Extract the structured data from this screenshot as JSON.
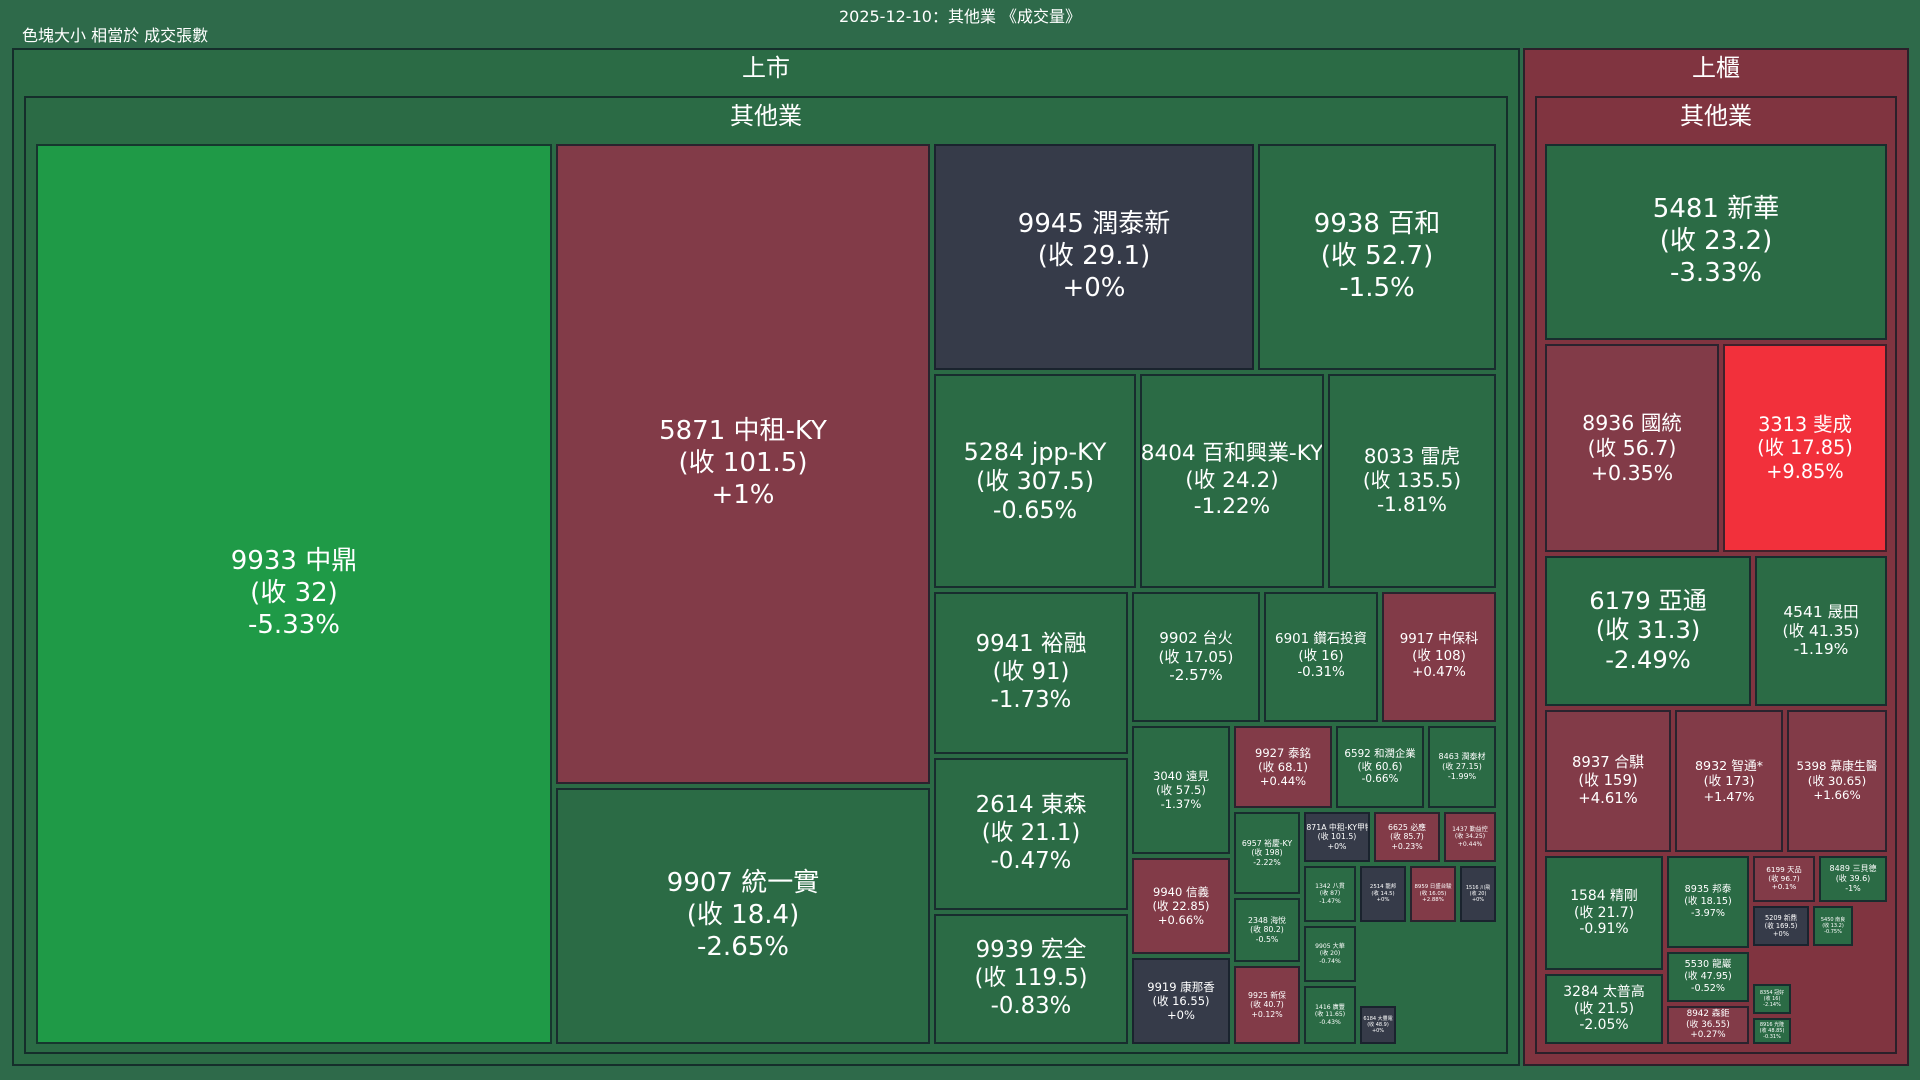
{
  "header": {
    "title": "2025-12-10：其他業 《成交量》",
    "note": "色塊大小 相當於 成交張數"
  },
  "colors": {
    "background": "#2e6a4a",
    "strong_down": "#1f9a47",
    "down": "#2b6b45",
    "flat": "#363b49",
    "up": "#823b48",
    "limit_up": "#f2303b",
    "market_otc": "#803440"
  },
  "chart_data": {
    "type": "treemap",
    "title": "2025-12-10：其他業 《成交量》",
    "size_metric": "色塊大小 相當於 成交張數",
    "groups": [
      {
        "market": "上市",
        "industry": "其他業",
        "items": [
          {
            "code": "9933",
            "name": "中鼎",
            "close": "32",
            "change": "-5.33%",
            "pct": -5.33
          },
          {
            "code": "5871",
            "name": "中租-KY",
            "close": "101.5",
            "change": "+1%",
            "pct": 1
          },
          {
            "code": "9907",
            "name": "統一實",
            "close": "18.4",
            "change": "-2.65%",
            "pct": -2.65
          },
          {
            "code": "9945",
            "name": "潤泰新",
            "close": "29.1",
            "change": "+0%",
            "pct": 0
          },
          {
            "code": "9938",
            "name": "百和",
            "close": "52.7",
            "change": "-1.5%",
            "pct": -1.5
          },
          {
            "code": "5284",
            "name": "jpp-KY",
            "close": "307.5",
            "change": "-0.65%",
            "pct": -0.65
          },
          {
            "code": "8404",
            "name": "百和興業-KY",
            "close": "24.2",
            "change": "-1.22%",
            "pct": -1.22
          },
          {
            "code": "8033",
            "name": "雷虎",
            "close": "135.5",
            "change": "-1.81%",
            "pct": -1.81
          },
          {
            "code": "9941",
            "name": "裕融",
            "close": "91",
            "change": "-1.73%",
            "pct": -1.73
          },
          {
            "code": "9902",
            "name": "台火",
            "close": "17.05",
            "change": "-2.57%",
            "pct": -2.57
          },
          {
            "code": "6901",
            "name": "鑽石投資",
            "close": "16",
            "change": "-0.31%",
            "pct": -0.31
          },
          {
            "code": "9917",
            "name": "中保科",
            "close": "108",
            "change": "+0.47%",
            "pct": 0.47
          },
          {
            "code": "2614",
            "name": "東森",
            "close": "21.1",
            "change": "-0.47%",
            "pct": -0.47
          },
          {
            "code": "3040",
            "name": "遠見",
            "close": "57.5",
            "change": "-1.37%",
            "pct": -1.37
          },
          {
            "code": "9927",
            "name": "泰銘",
            "close": "68.1",
            "change": "+0.44%",
            "pct": 0.44
          },
          {
            "code": "6592",
            "name": "和潤企業",
            "close": "60.6",
            "change": "-0.66%",
            "pct": -0.66
          },
          {
            "code": "8463",
            "name": "潤泰材",
            "close": "27.15",
            "change": "-1.99%",
            "pct": -1.99
          },
          {
            "code": "6957",
            "name": "裕慶-KY",
            "close": "198",
            "change": "-2.22%",
            "pct": -2.22
          },
          {
            "code": "5871A",
            "name": "中租-KY甲特",
            "close": "101.5",
            "change": "+0%",
            "pct": 0
          },
          {
            "code": "6625",
            "name": "必應",
            "close": "85.7",
            "change": "+0.23%",
            "pct": 0.23
          },
          {
            "code": "1437",
            "name": "勤益控",
            "close": "34.25",
            "change": "+0.44%",
            "pct": 0.44
          },
          {
            "code": "9940",
            "name": "信義",
            "close": "22.85",
            "change": "+0.66%",
            "pct": 0.66
          },
          {
            "code": "1342",
            "name": "八貫",
            "close": "87",
            "change": "-1.47%",
            "pct": -1.47
          },
          {
            "code": "2514",
            "name": "龍邦",
            "close": "14.5",
            "change": "+0%",
            "pct": 0
          },
          {
            "code": "8959",
            "name": "日盛台駿",
            "close": "16.05",
            "change": "+2.88%",
            "pct": 2.88
          },
          {
            "code": "1516",
            "name": "川飛",
            "close": "20",
            "change": "+0%",
            "pct": 0
          },
          {
            "code": "9939",
            "name": "宏全",
            "close": "119.5",
            "change": "-0.83%",
            "pct": -0.83
          },
          {
            "code": "2348",
            "name": "海悅",
            "close": "80.2",
            "change": "-0.5%",
            "pct": -0.5
          },
          {
            "code": "9905",
            "name": "大華",
            "close": "20",
            "change": "-0.74%",
            "pct": -0.74
          },
          {
            "code": "9919",
            "name": "康那香",
            "close": "16.55",
            "change": "+0%",
            "pct": 0
          },
          {
            "code": "9925",
            "name": "新保",
            "close": "40.7",
            "change": "+0.12%",
            "pct": 0.12
          },
          {
            "code": "1416",
            "name": "廣豐",
            "close": "11.65",
            "change": "-0.43%",
            "pct": -0.43
          },
          {
            "code": "6184",
            "name": "大豐電",
            "close": "48.9",
            "change": "+0%",
            "pct": 0
          }
        ]
      },
      {
        "market": "上櫃",
        "industry": "其他業",
        "items": [
          {
            "code": "5481",
            "name": "新華",
            "close": "23.2",
            "change": "-3.33%",
            "pct": -3.33
          },
          {
            "code": "8936",
            "name": "國統",
            "close": "56.7",
            "change": "+0.35%",
            "pct": 0.35
          },
          {
            "code": "3313",
            "name": "斐成",
            "close": "17.85",
            "change": "+9.85%",
            "pct": 9.85
          },
          {
            "code": "6179",
            "name": "亞通",
            "close": "31.3",
            "change": "-2.49%",
            "pct": -2.49
          },
          {
            "code": "4541",
            "name": "晟田",
            "close": "41.35",
            "change": "-1.19%",
            "pct": -1.19
          },
          {
            "code": "8937",
            "name": "合騏",
            "close": "159",
            "change": "+4.61%",
            "pct": 4.61
          },
          {
            "code": "8932",
            "name": "智通*",
            "close": "173",
            "change": "+1.47%",
            "pct": 1.47
          },
          {
            "code": "5398",
            "name": "慕康生醫",
            "close": "30.65",
            "change": "+1.66%",
            "pct": 1.66
          },
          {
            "code": "1584",
            "name": "精剛",
            "close": "21.7",
            "change": "-0.91%",
            "pct": -0.91
          },
          {
            "code": "8935",
            "name": "邦泰",
            "close": "18.15",
            "change": "-3.97%",
            "pct": -3.97
          },
          {
            "code": "6199",
            "name": "天品",
            "close": "96.7",
            "change": "+0.1%",
            "pct": 0.1
          },
          {
            "code": "8489",
            "name": "三貝德",
            "close": "39.6",
            "change": "-1%",
            "pct": -1
          },
          {
            "code": "5209",
            "name": "新鼎",
            "close": "169.5",
            "change": "+0%",
            "pct": 0
          },
          {
            "code": "5450",
            "name": "南良",
            "close": "13.2",
            "change": "-0.75%",
            "pct": -0.75
          },
          {
            "code": "3284",
            "name": "太普高",
            "close": "21.5",
            "change": "-2.05%",
            "pct": -2.05
          },
          {
            "code": "5530",
            "name": "龍巖",
            "close": "47.95",
            "change": "-0.52%",
            "pct": -0.52
          },
          {
            "code": "8354",
            "name": "冠好",
            "close": "16",
            "change": "-2.14%",
            "pct": -2.14
          },
          {
            "code": "8942",
            "name": "森鉅",
            "close": "36.55",
            "change": "+0.27%",
            "pct": 0.27
          },
          {
            "code": "8916",
            "name": "光隆",
            "close": "48.85",
            "change": "-0.31%",
            "pct": -0.31
          }
        ]
      }
    ]
  }
}
